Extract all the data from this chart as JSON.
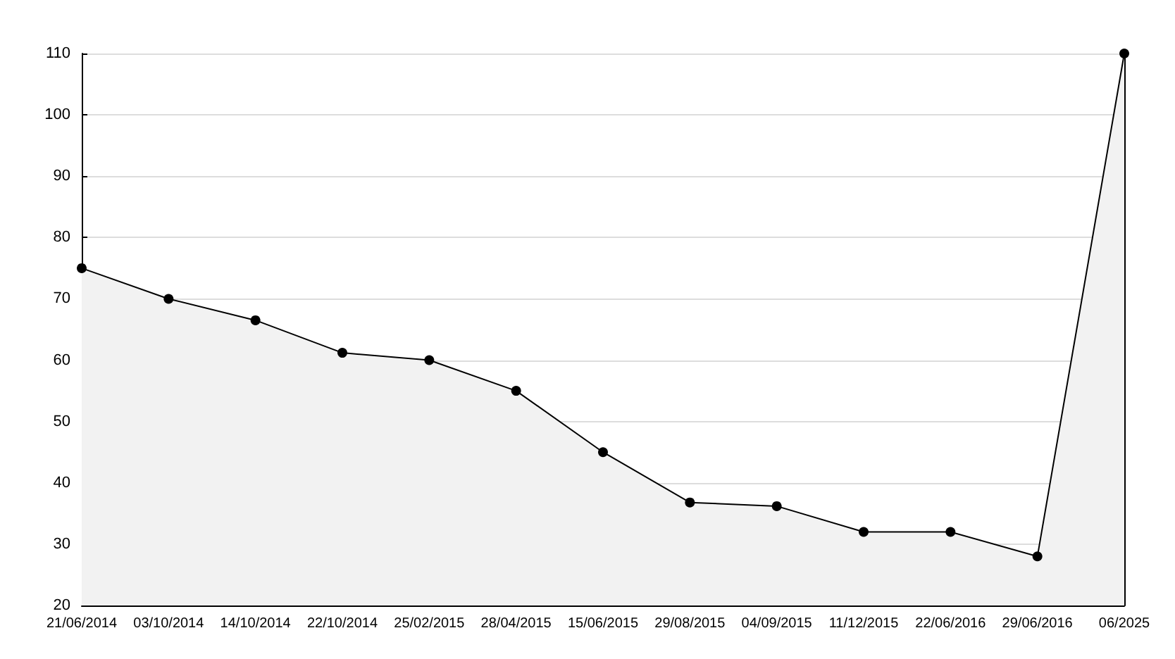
{
  "chart_data": {
    "type": "area",
    "categories": [
      "21/06/2014",
      "03/10/2014",
      "14/10/2014",
      "22/10/2014",
      "25/02/2015",
      "28/04/2015",
      "15/06/2015",
      "29/08/2015",
      "04/09/2015",
      "11/12/2015",
      "22/06/2016",
      "29/06/2016",
      "06/2025"
    ],
    "series": [
      {
        "color": "#000000",
        "values": [
          75,
          70,
          66.5,
          61.2,
          60,
          55,
          45,
          36.8,
          36.2,
          32,
          32,
          28,
          110
        ]
      }
    ],
    "ylim": [
      20,
      110
    ],
    "yticks": [
      20,
      30,
      40,
      50,
      60,
      70,
      80,
      90,
      100,
      110
    ],
    "grid": "y",
    "marker": "circle",
    "line_style": "solid"
  }
}
